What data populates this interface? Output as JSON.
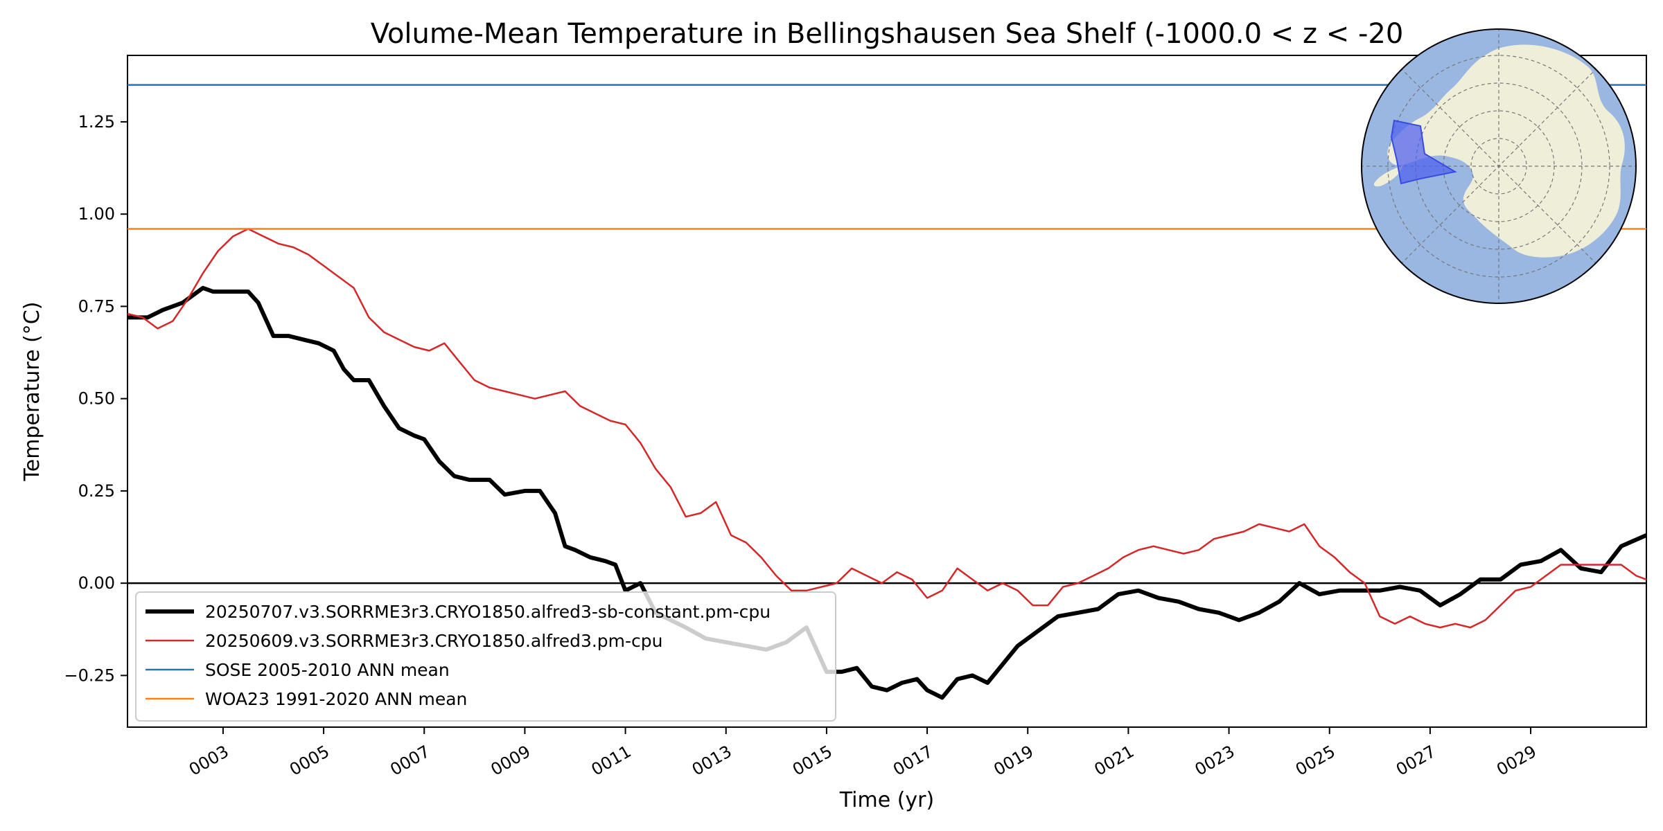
{
  "chart_data": {
    "type": "line",
    "title": "Volume-Mean Temperature in Bellingshausen Sea Shelf (-1000.0 < z < -20",
    "xlabel": "Time (yr)",
    "ylabel": "Temperature (°C)",
    "xlim": [
      1.1,
      31.3
    ],
    "ylim": [
      -0.39,
      1.43
    ],
    "xticks": [
      3,
      5,
      7,
      9,
      11,
      13,
      15,
      17,
      19,
      21,
      23,
      25,
      27,
      29
    ],
    "xtick_labels": [
      "0003",
      "0005",
      "0007",
      "0009",
      "0011",
      "0013",
      "0015",
      "0017",
      "0019",
      "0021",
      "0023",
      "0025",
      "0027",
      "0029"
    ],
    "yticks": [
      -0.25,
      0.0,
      0.25,
      0.5,
      0.75,
      1.0,
      1.25
    ],
    "ytick_labels": [
      "−0.25",
      "0.00",
      "0.25",
      "0.50",
      "0.75",
      "1.00",
      "1.25"
    ],
    "grid": false,
    "legend_position": "lower-left",
    "zero_line": 0.0,
    "series": [
      {
        "name": "20250707.v3.SORRME3r3.CRYO1850.alfred3-sb-constant.pm-cpu",
        "color": "#000000",
        "style": "thick",
        "x": [
          1.1,
          1.5,
          1.8,
          2.2,
          2.6,
          2.8,
          3.0,
          3.3,
          3.5,
          3.7,
          4.0,
          4.3,
          4.6,
          4.9,
          5.2,
          5.4,
          5.6,
          5.9,
          6.2,
          6.5,
          6.8,
          7.0,
          7.3,
          7.6,
          7.9,
          8.3,
          8.6,
          9.0,
          9.3,
          9.6,
          9.8,
          10.0,
          10.3,
          10.6,
          10.8,
          11.0,
          11.3,
          11.6,
          11.9,
          12.2,
          12.6,
          13.0,
          13.4,
          13.8,
          14.2,
          14.6,
          14.8,
          15.0,
          15.3,
          15.6,
          15.9,
          16.2,
          16.5,
          16.8,
          17.0,
          17.3,
          17.6,
          17.9,
          18.2,
          18.5,
          18.8,
          19.2,
          19.6,
          20.0,
          20.4,
          20.8,
          21.2,
          21.6,
          22.0,
          22.4,
          22.8,
          23.2,
          23.6,
          24.0,
          24.4,
          24.8,
          25.2,
          25.6,
          26.0,
          26.4,
          26.8,
          27.2,
          27.6,
          28.0,
          28.4,
          28.8,
          29.2,
          29.6,
          30.0,
          30.4,
          30.8,
          31.3
        ],
        "y": [
          0.72,
          0.72,
          0.74,
          0.76,
          0.8,
          0.79,
          0.79,
          0.79,
          0.79,
          0.76,
          0.67,
          0.67,
          0.66,
          0.65,
          0.63,
          0.58,
          0.55,
          0.55,
          0.48,
          0.42,
          0.4,
          0.39,
          0.33,
          0.29,
          0.28,
          0.28,
          0.24,
          0.25,
          0.25,
          0.19,
          0.1,
          0.09,
          0.07,
          0.06,
          0.05,
          -0.02,
          0.0,
          -0.08,
          -0.1,
          -0.12,
          -0.15,
          -0.16,
          -0.17,
          -0.18,
          -0.16,
          -0.12,
          -0.18,
          -0.24,
          -0.24,
          -0.23,
          -0.28,
          -0.29,
          -0.27,
          -0.26,
          -0.29,
          -0.31,
          -0.26,
          -0.25,
          -0.27,
          -0.22,
          -0.17,
          -0.13,
          -0.09,
          -0.08,
          -0.07,
          -0.03,
          -0.02,
          -0.04,
          -0.05,
          -0.07,
          -0.08,
          -0.1,
          -0.08,
          -0.05,
          0.0,
          -0.03,
          -0.02,
          -0.02,
          -0.02,
          -0.01,
          -0.02,
          -0.06,
          -0.03,
          0.01,
          0.01,
          0.05,
          0.06,
          0.09,
          0.04,
          0.03,
          0.1,
          0.13
        ]
      },
      {
        "name": "20250609.v3.SORRME3r3.CRYO1850.alfred3.pm-cpu",
        "color": "#d62728",
        "style": "thin",
        "x": [
          1.1,
          1.4,
          1.7,
          2.0,
          2.3,
          2.6,
          2.9,
          3.2,
          3.5,
          3.8,
          4.1,
          4.4,
          4.7,
          5.0,
          5.3,
          5.6,
          5.9,
          6.2,
          6.5,
          6.8,
          7.1,
          7.4,
          7.7,
          8.0,
          8.3,
          8.6,
          8.9,
          9.2,
          9.5,
          9.8,
          10.1,
          10.4,
          10.7,
          11.0,
          11.3,
          11.6,
          11.9,
          12.2,
          12.5,
          12.8,
          13.1,
          13.4,
          13.7,
          14.0,
          14.3,
          14.6,
          14.9,
          15.2,
          15.5,
          15.8,
          16.1,
          16.4,
          16.7,
          17.0,
          17.3,
          17.6,
          17.9,
          18.2,
          18.5,
          18.8,
          19.1,
          19.4,
          19.7,
          20.0,
          20.3,
          20.6,
          20.9,
          21.2,
          21.5,
          21.8,
          22.1,
          22.4,
          22.7,
          23.0,
          23.3,
          23.6,
          23.9,
          24.2,
          24.5,
          24.8,
          25.1,
          25.4,
          25.7,
          26.0,
          26.3,
          26.6,
          26.9,
          27.2,
          27.5,
          27.8,
          28.1,
          28.4,
          28.7,
          29.0,
          29.3,
          29.6,
          29.9,
          30.2,
          30.5,
          30.8,
          31.1,
          31.3
        ],
        "y": [
          0.73,
          0.72,
          0.69,
          0.71,
          0.77,
          0.84,
          0.9,
          0.94,
          0.96,
          0.94,
          0.92,
          0.91,
          0.89,
          0.86,
          0.83,
          0.8,
          0.72,
          0.68,
          0.66,
          0.64,
          0.63,
          0.65,
          0.6,
          0.55,
          0.53,
          0.52,
          0.51,
          0.5,
          0.51,
          0.52,
          0.48,
          0.46,
          0.44,
          0.43,
          0.38,
          0.31,
          0.26,
          0.18,
          0.19,
          0.22,
          0.13,
          0.11,
          0.07,
          0.02,
          -0.02,
          -0.02,
          -0.01,
          0.0,
          0.04,
          0.02,
          0.0,
          0.03,
          0.01,
          -0.04,
          -0.02,
          0.04,
          0.01,
          -0.02,
          0.0,
          -0.02,
          -0.06,
          -0.06,
          -0.01,
          0.0,
          0.02,
          0.04,
          0.07,
          0.09,
          0.1,
          0.09,
          0.08,
          0.09,
          0.12,
          0.13,
          0.14,
          0.16,
          0.15,
          0.14,
          0.16,
          0.1,
          0.07,
          0.03,
          0.0,
          -0.09,
          -0.11,
          -0.09,
          -0.11,
          -0.12,
          -0.11,
          -0.12,
          -0.1,
          -0.06,
          -0.02,
          -0.01,
          0.02,
          0.05,
          0.05,
          0.05,
          0.05,
          0.05,
          0.02,
          0.01
        ]
      },
      {
        "name": "SOSE 2005-2010 ANN mean",
        "color": "#1f77b4",
        "style": "hline",
        "y": 1.35
      },
      {
        "name": "WOA23 1991-2020 ANN mean",
        "color": "#ff7f0e",
        "style": "hline",
        "y": 0.96
      }
    ]
  },
  "inset_map": {
    "description_icon": "antarctica-polar-map-icon",
    "ocean_color": "#9ab7e2",
    "land_color": "#efeed9",
    "region_color": "#4a5cf0"
  }
}
